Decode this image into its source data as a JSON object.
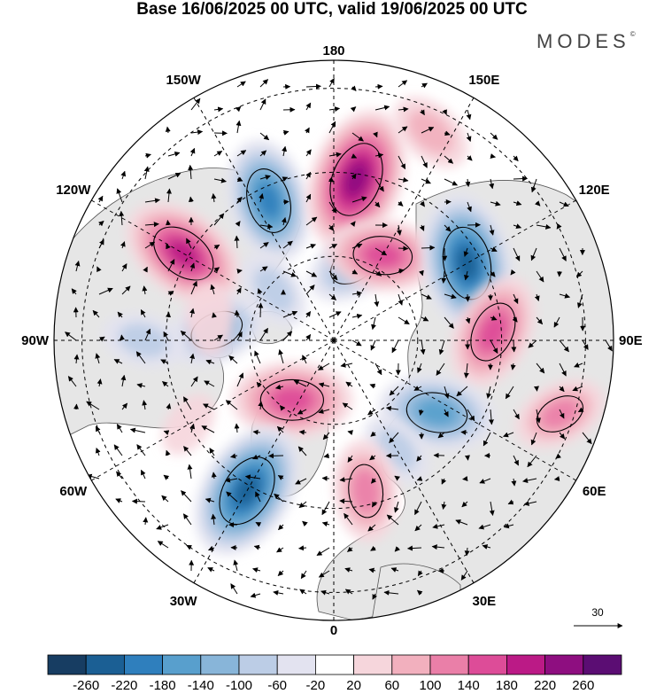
{
  "header": {
    "title": "Base 16/06/2025 00 UTC, valid 19/06/2025 00 UTC",
    "brand": "MODES"
  },
  "map": {
    "projection": "north-polar-stereographic",
    "center_lon_bottom": "0",
    "longitude_labels": [
      {
        "text": "180",
        "lon": 180
      },
      {
        "text": "150E",
        "lon": 150
      },
      {
        "text": "120E",
        "lon": 120
      },
      {
        "text": "90E",
        "lon": 90
      },
      {
        "text": "60E",
        "lon": 60
      },
      {
        "text": "30E",
        "lon": 30
      },
      {
        "text": "0",
        "lon": 0
      },
      {
        "text": "30W",
        "lon": -30
      },
      {
        "text": "60W",
        "lon": -60
      },
      {
        "text": "90W",
        "lon": -90
      },
      {
        "text": "120W",
        "lon": -120
      },
      {
        "text": "150W",
        "lon": -150
      }
    ],
    "gridlines": "dashed",
    "colors": {
      "land": "#e6e6e6",
      "ocean": "#ffffff",
      "coast": "#555555"
    },
    "anomalies": [
      {
        "lon": -35,
        "r": 0.26,
        "value": 180
      },
      {
        "lon": -120,
        "r": 0.62,
        "value": 200
      },
      {
        "lon": -155,
        "r": 0.55,
        "value": -190
      },
      {
        "lon": 172,
        "r": 0.58,
        "value": 240
      },
      {
        "lon": 165,
        "r": 0.28,
        "value": -120
      },
      {
        "lon": 150,
        "r": 0.35,
        "value": 160
      },
      {
        "lon": 155,
        "r": 0.82,
        "value": 90
      },
      {
        "lon": 120,
        "r": 0.55,
        "value": -230
      },
      {
        "lon": 93,
        "r": 0.57,
        "value": 170
      },
      {
        "lon": 72,
        "r": 0.85,
        "value": 110
      },
      {
        "lon": 55,
        "r": 0.45,
        "value": -170
      },
      {
        "lon": 30,
        "r": 0.45,
        "value": -70
      },
      {
        "lon": 12,
        "r": 0.55,
        "value": 130
      },
      {
        "lon": -30,
        "r": 0.62,
        "value": -230
      },
      {
        "lon": -95,
        "r": 0.42,
        "value": -130
      },
      {
        "lon": -90,
        "r": 0.68,
        "value": -80
      },
      {
        "lon": -130,
        "r": 0.28,
        "value": -80
      },
      {
        "lon": -100,
        "r": 0.45,
        "value": 60
      },
      {
        "lon": -60,
        "r": 0.6,
        "value": 40
      }
    ]
  },
  "colorbar": {
    "ticks": [
      "-260",
      "-220",
      "-180",
      "-140",
      "-100",
      "-60",
      "-20",
      "20",
      "60",
      "100",
      "140",
      "180",
      "220",
      "260"
    ],
    "colors": [
      "#173d62",
      "#1b5f94",
      "#2f7fbd",
      "#589fcd",
      "#88b5d9",
      "#bccde6",
      "#e3e3f0",
      "#ffffff",
      "#f6d6dc",
      "#f2b0be",
      "#ea7fa8",
      "#dd4c98",
      "#bb1a86",
      "#8e0e80",
      "#5b0d73"
    ]
  },
  "vector_reference": {
    "label": "30"
  }
}
